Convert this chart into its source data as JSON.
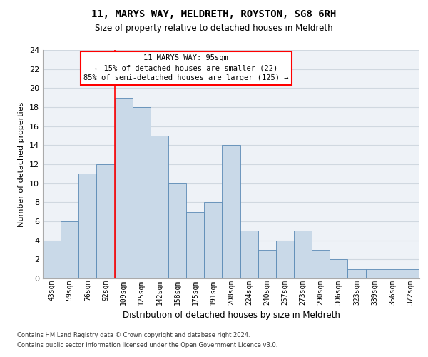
{
  "title": "11, MARYS WAY, MELDRETH, ROYSTON, SG8 6RH",
  "subtitle": "Size of property relative to detached houses in Meldreth",
  "xlabel": "Distribution of detached houses by size in Meldreth",
  "ylabel": "Number of detached properties",
  "categories": [
    "43sqm",
    "59sqm",
    "76sqm",
    "92sqm",
    "109sqm",
    "125sqm",
    "142sqm",
    "158sqm",
    "175sqm",
    "191sqm",
    "208sqm",
    "224sqm",
    "240sqm",
    "257sqm",
    "273sqm",
    "290sqm",
    "306sqm",
    "323sqm",
    "339sqm",
    "356sqm",
    "372sqm"
  ],
  "values": [
    4,
    6,
    11,
    12,
    19,
    18,
    15,
    10,
    7,
    8,
    14,
    5,
    3,
    4,
    5,
    3,
    2,
    1,
    1,
    1,
    1
  ],
  "bar_color": "#c9d9e8",
  "bar_edge_color": "#5a8ab5",
  "grid_color": "#d0d8e0",
  "background_color": "#eef2f7",
  "red_line_x": 3.5,
  "annotation_text": "11 MARYS WAY: 95sqm\n← 15% of detached houses are smaller (22)\n85% of semi-detached houses are larger (125) →",
  "ylim": [
    0,
    24
  ],
  "yticks": [
    0,
    2,
    4,
    6,
    8,
    10,
    12,
    14,
    16,
    18,
    20,
    22,
    24
  ],
  "footer_line1": "Contains HM Land Registry data © Crown copyright and database right 2024.",
  "footer_line2": "Contains public sector information licensed under the Open Government Licence v3.0."
}
